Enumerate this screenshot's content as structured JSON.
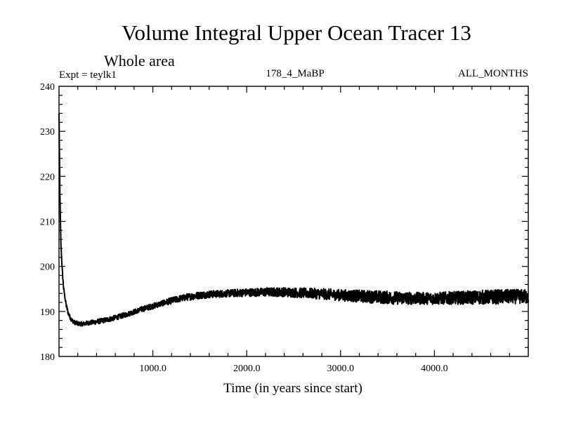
{
  "chart_data": {
    "type": "line",
    "title": "Volume Integral Upper Ocean Tracer 13",
    "subtitle": "Whole area",
    "experiment_label": "Expt = teylk1",
    "center_label": "178_4_MaBP",
    "right_label": "ALL_MONTHS",
    "xlabel": "Time (in years since start)",
    "ylabel": "",
    "xlim": [
      0,
      5000
    ],
    "ylim": [
      180,
      240
    ],
    "x_ticks": [
      1000,
      2000,
      3000,
      4000
    ],
    "x_tick_labels": [
      "1000.0",
      "2000.0",
      "3000.0",
      "4000.0"
    ],
    "y_ticks": [
      180,
      190,
      200,
      210,
      220,
      230,
      240
    ],
    "y_tick_labels": [
      "180",
      "190",
      "200",
      "210",
      "220",
      "230",
      "240"
    ],
    "grid": false,
    "series": [
      {
        "name": "Volume integral",
        "x": [
          0,
          10,
          20,
          35,
          50,
          75,
          100,
          130,
          160,
          200,
          250,
          300,
          400,
          500,
          600,
          700,
          800,
          900,
          1000,
          1100,
          1200,
          1300,
          1400,
          1500,
          1600,
          1700,
          1800,
          1900,
          2000,
          2200,
          2400,
          2600,
          2800,
          3000,
          3200,
          3400,
          3600,
          3800,
          4000,
          4200,
          4400,
          4600,
          4800,
          5000
        ],
        "values": [
          234,
          216,
          205,
          199,
          195,
          191.5,
          189.5,
          188.2,
          187.6,
          187.3,
          187.2,
          187.4,
          187.7,
          188.1,
          188.6,
          189.2,
          189.9,
          190.6,
          191.2,
          191.8,
          192.4,
          192.9,
          193.3,
          193.6,
          193.8,
          193.9,
          194.0,
          194.1,
          194.2,
          194.3,
          194.3,
          194.1,
          193.9,
          193.6,
          193.4,
          193.2,
          193.0,
          192.9,
          192.9,
          193.0,
          193.1,
          193.2,
          193.3,
          193.3
        ],
        "noise": [
          0,
          0,
          0.4,
          0.3,
          0.3,
          0.3,
          0.3,
          0.3,
          0.3,
          0.3,
          0.3,
          0.3,
          0.35,
          0.35,
          0.35,
          0.35,
          0.35,
          0.4,
          0.4,
          0.4,
          0.45,
          0.45,
          0.5,
          0.5,
          0.5,
          0.5,
          0.5,
          0.55,
          0.55,
          0.6,
          0.65,
          0.7,
          0.75,
          0.8,
          0.85,
          0.9,
          0.9,
          0.85,
          0.85,
          0.9,
          0.95,
          1.0,
          1.0,
          1.0
        ],
        "color": "#000000"
      }
    ]
  }
}
